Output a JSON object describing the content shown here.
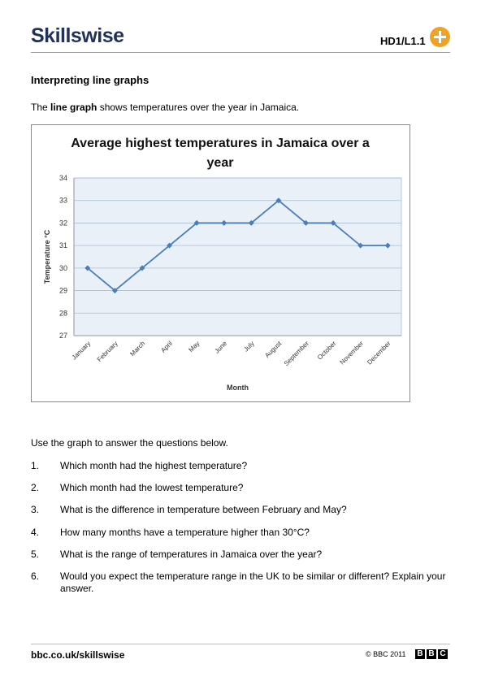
{
  "header": {
    "logo": "Skillswise",
    "code": "HD1/L1.1"
  },
  "heading": "Interpreting line graphs",
  "intro": {
    "before": "The ",
    "bold": "line graph",
    "after": " shows temperatures over the year in Jamaica."
  },
  "chart_data": {
    "type": "line",
    "title": "Average highest temperatures in Jamaica over a year",
    "x_label": "Month",
    "y_label": "Temperature °C",
    "categories": [
      "January",
      "February",
      "March",
      "April",
      "May",
      "June",
      "July",
      "August",
      "September",
      "October",
      "November",
      "December"
    ],
    "values": [
      30,
      29,
      30,
      31,
      32,
      32,
      32,
      33,
      32,
      32,
      31,
      31
    ],
    "color": "#4a7ebb",
    "ylim": [
      27,
      34
    ],
    "yticks": [
      27,
      28,
      29,
      30,
      31,
      32,
      33,
      34
    ],
    "grid": true
  },
  "lead": "Use the graph to answer the questions below.",
  "questions": [
    {
      "number": "1.",
      "text": "Which month had the highest temperature?"
    },
    {
      "number": "2.",
      "text": "Which month had the lowest temperature?"
    },
    {
      "number": "3.",
      "text": "What is the difference in temperature between February and May?"
    },
    {
      "number": "4.",
      "text": "How many months have a temperature higher than 30°C?"
    },
    {
      "number": "5.",
      "text": "What is the range of temperatures in Jamaica over the year?"
    },
    {
      "number": "6.",
      "text": "Would you expect the temperature range in the UK to be similar or different? Explain your answer."
    }
  ],
  "footer": {
    "url": "bbc.co.uk/skillswise",
    "copyright": "© BBC 2011",
    "logo": [
      "B",
      "B",
      "C"
    ]
  }
}
